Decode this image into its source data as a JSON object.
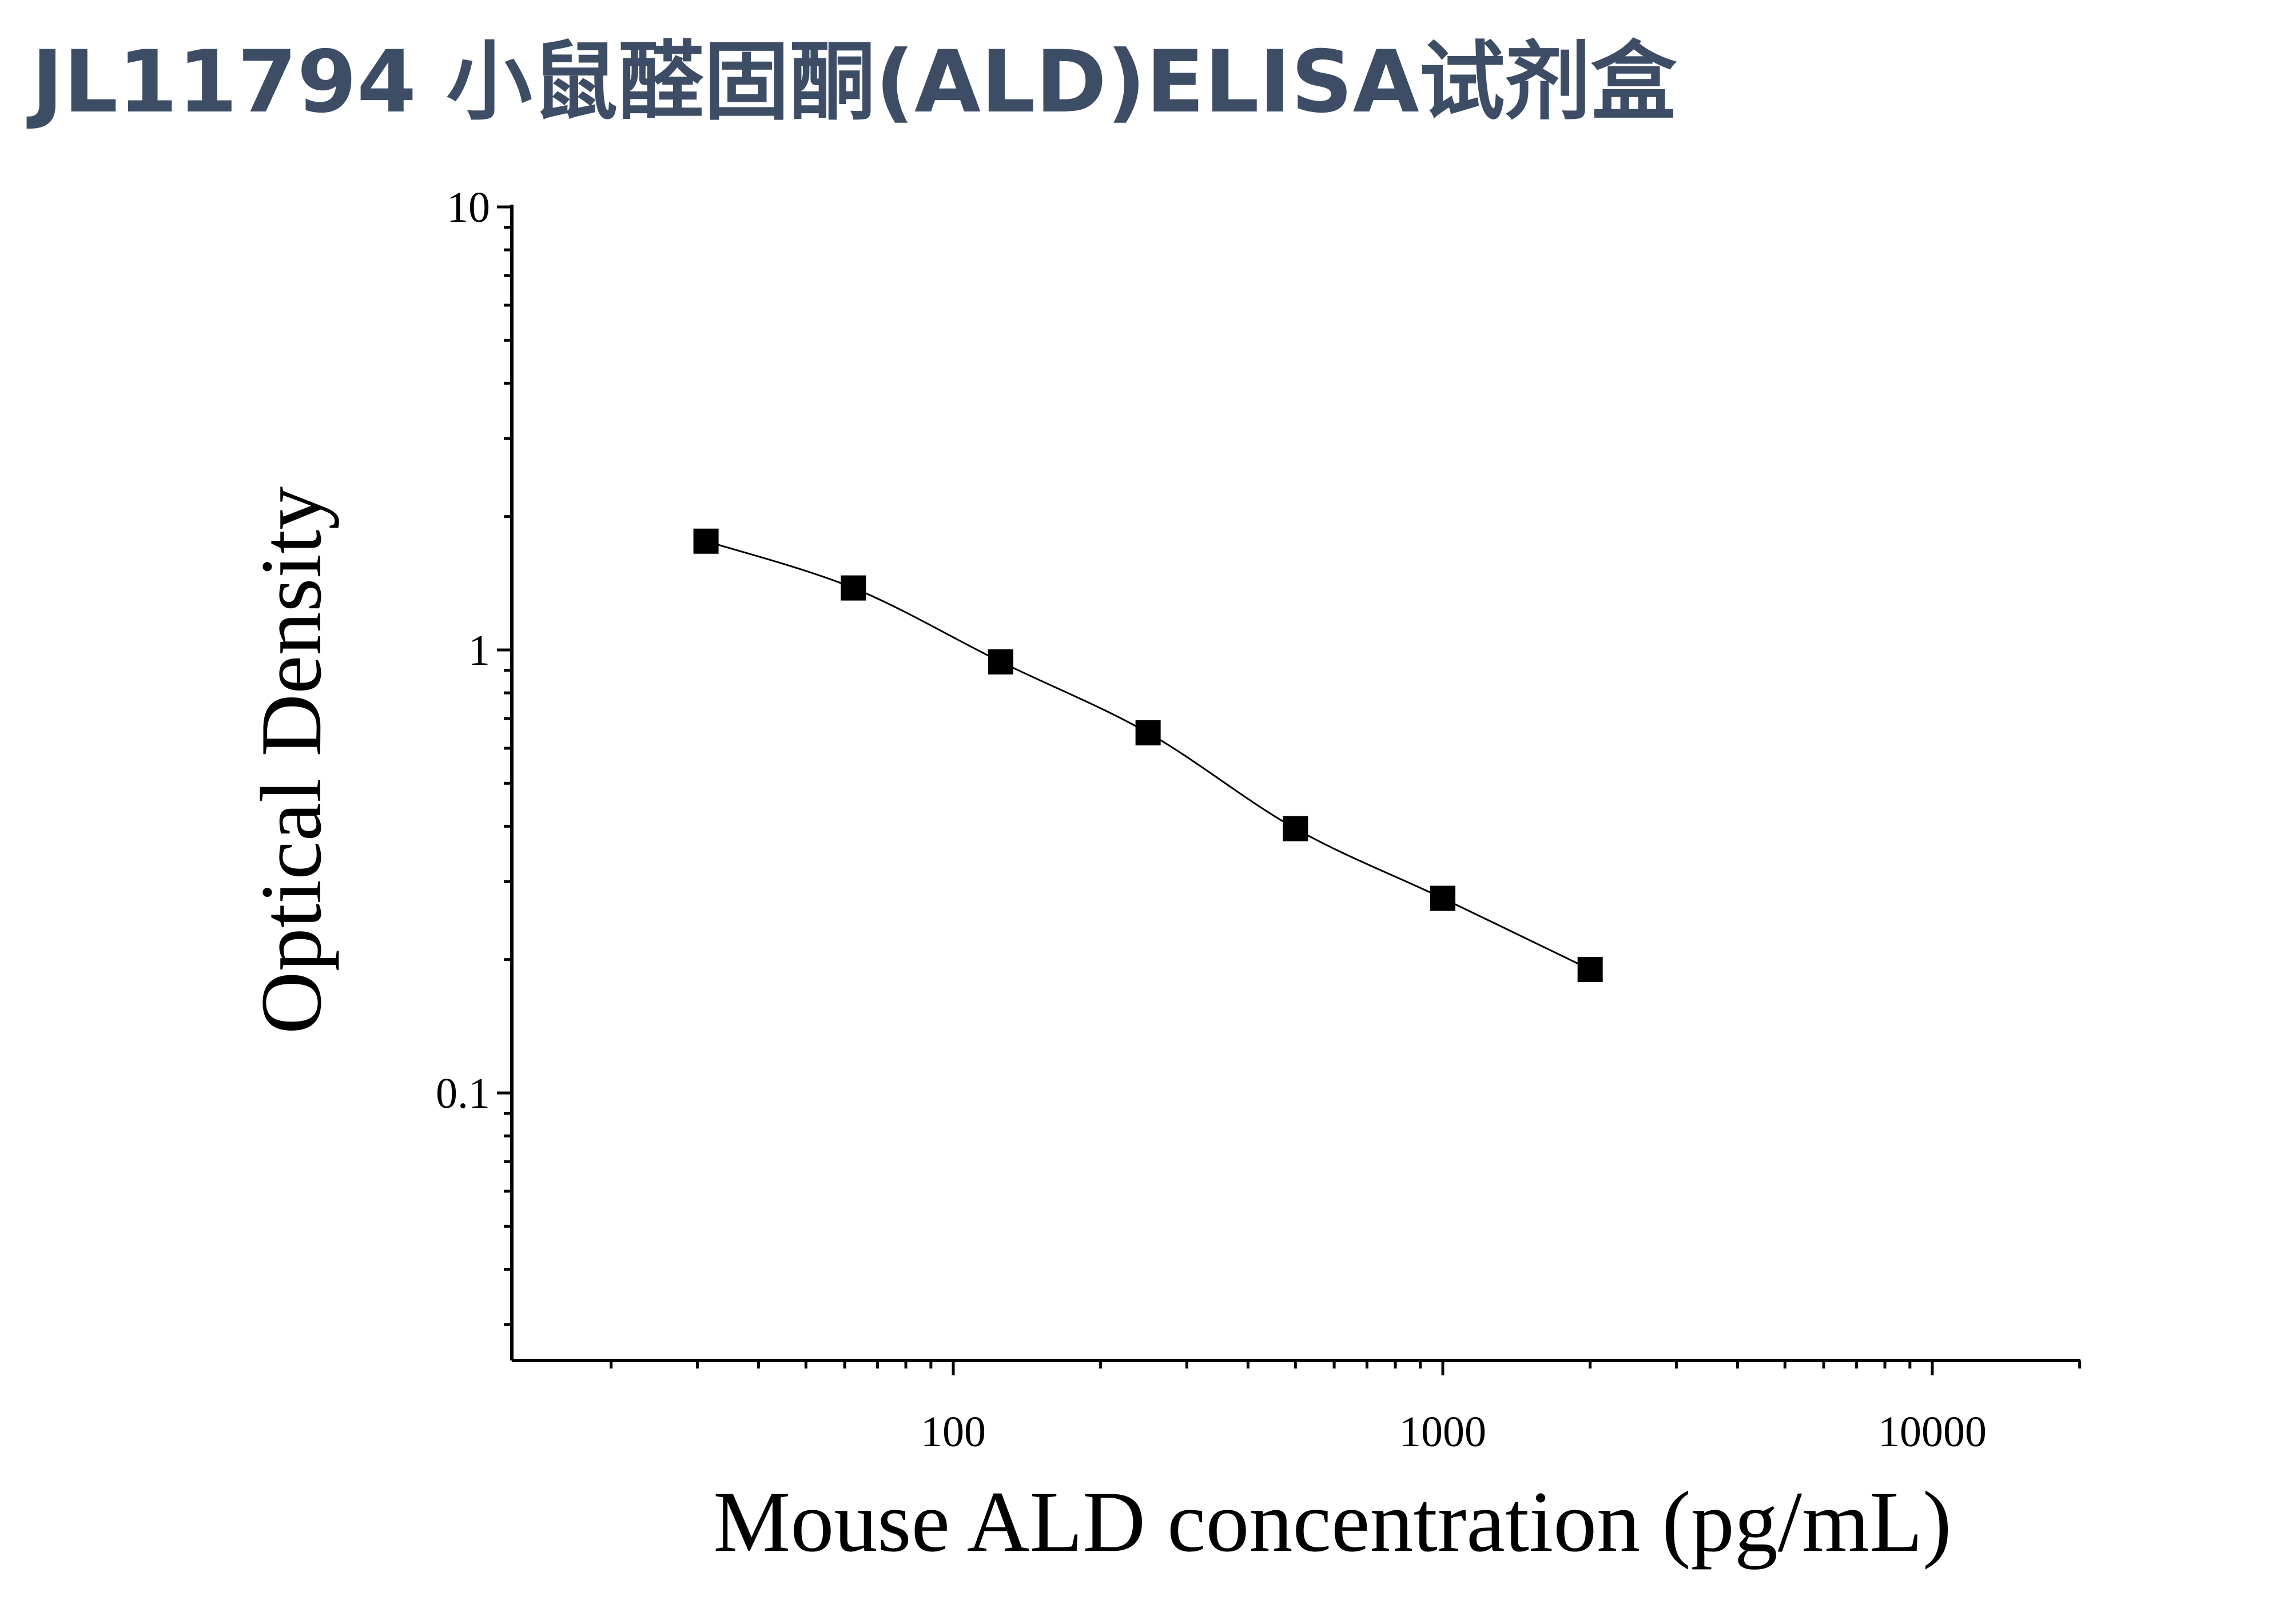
{
  "title": "JL11794 小鼠醛固酮(ALD)ELISA试剂盒",
  "chart_data": {
    "type": "scatter",
    "xlabel": "Mouse ALD concentration (pg/mL)",
    "ylabel": "Optical Density",
    "x_scale": "log",
    "y_scale": "log",
    "xlim": [
      10,
      20000
    ],
    "ylim": [
      0.025,
      10
    ],
    "x_ticks": [
      "100",
      "1000",
      "10000"
    ],
    "y_ticks": [
      "10",
      "1",
      "0.1"
    ],
    "grid": false,
    "legend": "none",
    "marker": "square",
    "fit_line": "smooth curve through points",
    "series": [
      {
        "x": [
          31.25,
          62.5,
          125,
          250,
          500,
          1000,
          2000
        ],
        "y": [
          1.76,
          1.38,
          0.94,
          0.65,
          0.395,
          0.275,
          0.19
        ]
      }
    ]
  }
}
